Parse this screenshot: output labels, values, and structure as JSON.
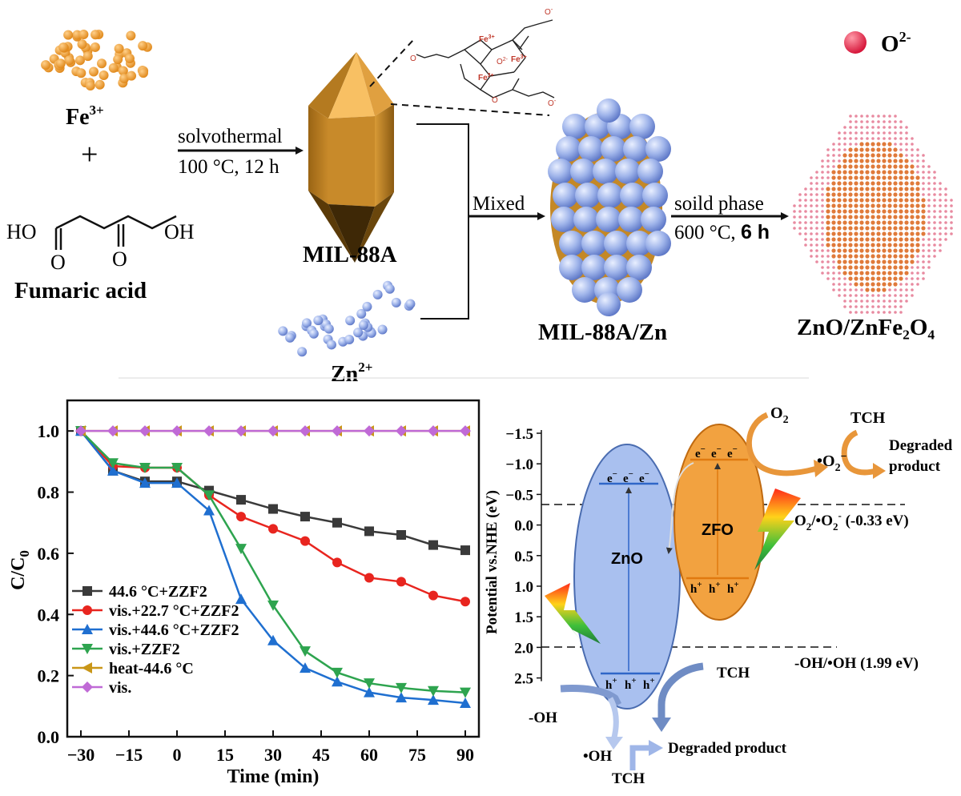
{
  "synthesis": {
    "fe_label_main": "Fe",
    "fe_label_sup": "3+",
    "plus": "+",
    "fumaric_ho": "HO",
    "fumaric_oh": "OH",
    "fumaric_o": "O",
    "fumaric_name": "Fumaric acid",
    "step1_top": "solvothermal",
    "step1_bottom": "100 °C, 12 h",
    "mil88a": "MIL-88A",
    "zn_main": "Zn",
    "zn_sup": "2+",
    "mixed": "Mixed",
    "mil88a_zn": "MIL-88A/Zn",
    "step2_top": "soild phase",
    "step2_bottom_a": "600 °C, ",
    "step2_bottom_b": "6 h",
    "product": "ZnO/ZnFe₂O₄",
    "o2_main": "O",
    "o2_sup": "2-",
    "fe3_sup": "3+",
    "fe": "Fe",
    "ob": "O",
    "carb_o": "O",
    "carb_neg": "-"
  },
  "chart_data": {
    "type": "line",
    "xlabel": "Time (min)",
    "ylabel": "C/C",
    "ylabel_sub": "0",
    "xlim": [
      -30,
      90
    ],
    "ylim": [
      0.0,
      1.1
    ],
    "xticks": [
      "−30",
      "−15",
      "0",
      "15",
      "30",
      "45",
      "60",
      "75",
      "90"
    ],
    "yticks": [
      "0.0",
      "0.2",
      "0.4",
      "0.6",
      "0.8",
      "1.0"
    ],
    "legend_position": "bottom-left",
    "x": [
      -30,
      -20,
      -10,
      0,
      10,
      20,
      30,
      40,
      50,
      60,
      70,
      80,
      90
    ],
    "series": [
      {
        "name": "44.6 °C+ZZF2",
        "color": "#3a3a3a",
        "marker": "square",
        "values": [
          1.0,
          0.87,
          0.835,
          0.835,
          0.805,
          0.775,
          0.745,
          0.72,
          0.7,
          0.672,
          0.66,
          0.627,
          0.61
        ]
      },
      {
        "name": "vis.+22.7 °C+ZZF2",
        "color": "#e8251f",
        "marker": "circle",
        "values": [
          1.0,
          0.885,
          0.88,
          0.88,
          0.79,
          0.72,
          0.68,
          0.64,
          0.57,
          0.52,
          0.507,
          0.462,
          0.442
        ]
      },
      {
        "name": "vis.+44.6 °C+ZZF2",
        "color": "#1f6fd0",
        "marker": "triangle-up",
        "values": [
          1.0,
          0.87,
          0.83,
          0.83,
          0.74,
          0.45,
          0.315,
          0.225,
          0.18,
          0.145,
          0.128,
          0.12,
          0.11
        ]
      },
      {
        "name": "vis.+ZZF2",
        "color": "#2ea44f",
        "marker": "triangle-down",
        "values": [
          1.0,
          0.895,
          0.88,
          0.88,
          0.79,
          0.615,
          0.43,
          0.28,
          0.21,
          0.175,
          0.16,
          0.15,
          0.145
        ]
      },
      {
        "name": "heat-44.6 °C",
        "color": "#c99618",
        "marker": "triangle-left",
        "values": [
          1.0,
          1.0,
          1.0,
          1.0,
          1.0,
          1.0,
          1.0,
          1.0,
          1.0,
          1.0,
          1.0,
          1.0,
          1.0
        ]
      },
      {
        "name": "vis.",
        "color": "#c06ad6",
        "marker": "diamond",
        "values": [
          1.0,
          1.0,
          1.0,
          1.0,
          1.0,
          1.0,
          1.0,
          1.0,
          1.0,
          1.0,
          1.0,
          1.0,
          1.0
        ]
      }
    ]
  },
  "mechanism": {
    "ylabel": "Potential vs.NHE (eV)",
    "yticks": [
      "−1.5",
      "−1.0",
      "−0.5",
      "0.0",
      "0.5",
      "1.0",
      "1.5",
      "2.0",
      "2.5"
    ],
    "zno": "ZnO",
    "zfo": "ZFO",
    "electron": "e",
    "electron_charge": "−",
    "hole": "h",
    "hole_charge": "+",
    "o2": "O",
    "o2_sub": "2",
    "o2_radical": "•O",
    "o2_radical_sub": "2",
    "o2_radical_sup": "−",
    "tch": "TCH",
    "degraded": "Degraded",
    "product": "product",
    "o2_couple_a": "O",
    "o2_couple_sub1": "2",
    "o2_couple_b": "/•O",
    "o2_couple_sub2": "2",
    "o2_couple_sup": "-",
    "o2_couple_c": " (-0.33 eV)",
    "oh_couple": "-OH/•OH (1.99 eV)",
    "oh_ion": "-OH",
    "oh_radical": "•OH",
    "degraded_product": "Degraded product",
    "colors": {
      "zno": "#a9c0ef",
      "zfo": "#f2a240",
      "vb": "#2f66c8",
      "cb_zfo": "#e07a10"
    }
  }
}
